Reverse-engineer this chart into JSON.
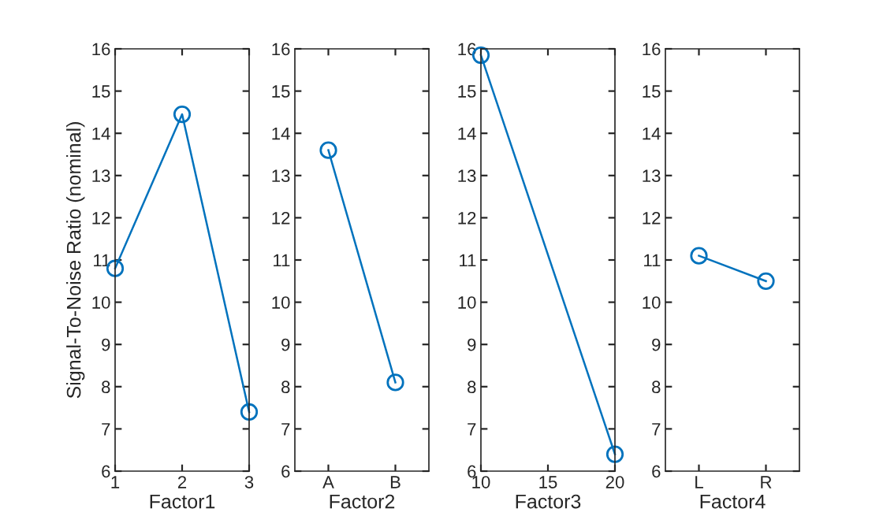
{
  "chart_data": [
    {
      "type": "line",
      "x": [
        1,
        2,
        3
      ],
      "xlim": [
        1,
        3
      ],
      "xticks": [
        1,
        2,
        3
      ],
      "ylim": [
        6,
        16
      ],
      "yticks": [
        6,
        7,
        8,
        9,
        10,
        11,
        12,
        13,
        14,
        15,
        16
      ],
      "xlabel": "Factor1",
      "ylabel": "Signal-To-Noise Ratio (nominal)",
      "marker": "circle",
      "series": [
        {
          "color": "#0072bd",
          "values": [
            10.8,
            14.45,
            7.4
          ]
        }
      ]
    },
    {
      "type": "line",
      "categories": [
        "A",
        "B"
      ],
      "ylim": [
        6,
        16
      ],
      "yticks": [
        6,
        7,
        8,
        9,
        10,
        11,
        12,
        13,
        14,
        15,
        16
      ],
      "xlabel": "Factor2",
      "marker": "circle",
      "series": [
        {
          "color": "#0072bd",
          "values": [
            13.6,
            8.1
          ]
        }
      ]
    },
    {
      "type": "line",
      "x": [
        10,
        20
      ],
      "xlim": [
        10,
        20
      ],
      "xticks": [
        10,
        15,
        20
      ],
      "ylim": [
        6,
        16
      ],
      "yticks": [
        6,
        7,
        8,
        9,
        10,
        11,
        12,
        13,
        14,
        15,
        16
      ],
      "xlabel": "Factor3",
      "marker": "circle",
      "series": [
        {
          "color": "#0072bd",
          "values": [
            15.85,
            6.4
          ]
        }
      ]
    },
    {
      "type": "line",
      "categories": [
        "L",
        "R"
      ],
      "ylim": [
        6,
        16
      ],
      "yticks": [
        6,
        7,
        8,
        9,
        10,
        11,
        12,
        13,
        14,
        15,
        16
      ],
      "xlabel": "Factor4",
      "marker": "circle",
      "series": [
        {
          "color": "#0072bd",
          "values": [
            11.1,
            10.5
          ]
        }
      ]
    }
  ]
}
